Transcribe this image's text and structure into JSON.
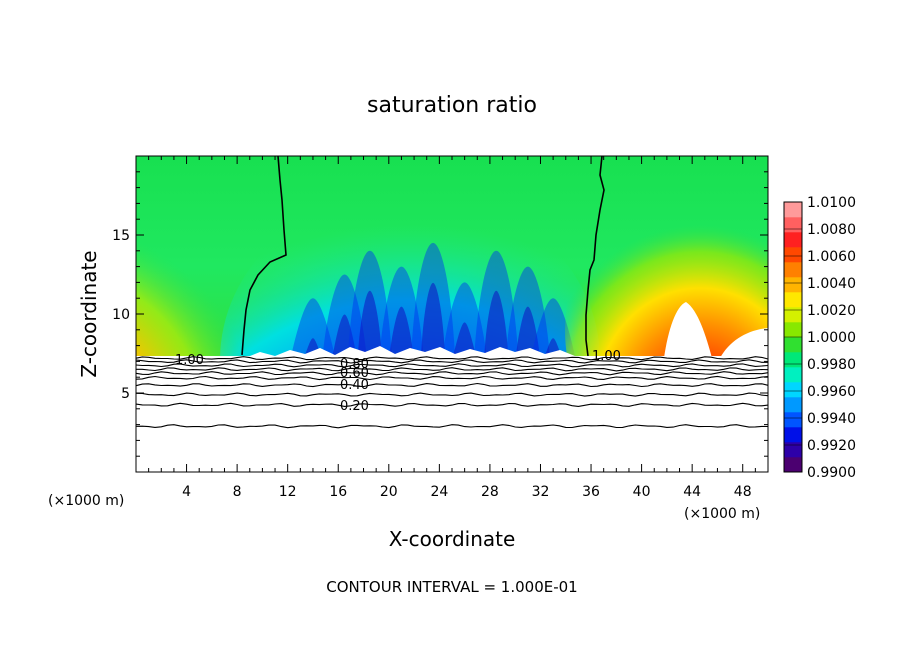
{
  "chart_data": {
    "type": "heatmap",
    "title": "saturation ratio",
    "xlabel": "X-coordinate",
    "ylabel": "Z-coordinate",
    "x_unit_left": "(×1000 m)",
    "x_unit_right": "(×1000 m)",
    "footer": "CONTOUR INTERVAL = 1.000E-01",
    "xlim": [
      0,
      50
    ],
    "ylim": [
      0,
      20
    ],
    "x_ticks": [
      4,
      8,
      12,
      16,
      20,
      24,
      28,
      32,
      36,
      40,
      44,
      48
    ],
    "y_ticks": [
      5,
      10,
      15
    ],
    "colorbar": {
      "levels": [
        "1.0100",
        "1.0080",
        "1.0060",
        "1.0040",
        "1.0020",
        "1.0000",
        "0.9980",
        "0.9960",
        "0.9940",
        "0.9920",
        "0.9900"
      ],
      "range": [
        0.99,
        1.01
      ],
      "colors": [
        "#4b0070",
        "#2d00a8",
        "#0010e8",
        "#0055ff",
        "#0099ff",
        "#00d6ff",
        "#00f0c0",
        "#00e878",
        "#30e030",
        "#88e800",
        "#d4f000",
        "#ffe800",
        "#ffb400",
        "#ff8000",
        "#ff4800",
        "#ff2020",
        "#ff6060",
        "#ff9a9a"
      ]
    },
    "contour_labels": [
      "1.00",
      "1.00",
      "0.80",
      "0.60",
      "0.40",
      "0.20"
    ],
    "contour_levels": [
      1.0,
      0.9,
      0.8,
      0.7,
      0.6,
      0.5,
      0.4,
      0.3,
      0.2,
      0.1
    ],
    "fill_region_zmin": 7.2
  }
}
